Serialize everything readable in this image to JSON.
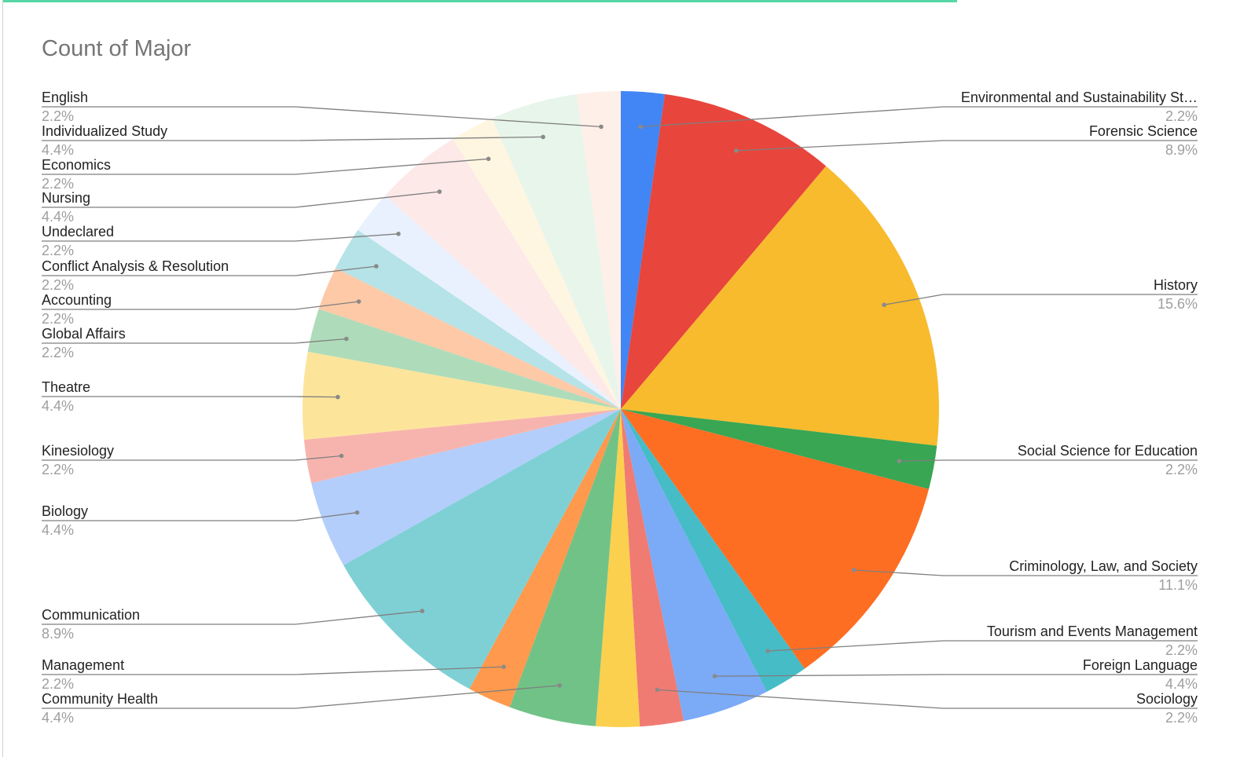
{
  "chart_data": {
    "type": "pie",
    "title": "Count of Major",
    "unit": "%",
    "slices": [
      {
        "label": "Environmental and Sustainability St…",
        "value": 2.2,
        "pct": "2.2%",
        "color": "#4285f4"
      },
      {
        "label": "Forensic Science",
        "value": 8.9,
        "pct": "8.9%",
        "color": "#e8453c"
      },
      {
        "label": "History",
        "value": 15.6,
        "pct": "15.6%",
        "color": "#f8bb2d"
      },
      {
        "label": "Social Science for Education",
        "value": 2.2,
        "pct": "2.2%",
        "color": "#38a653"
      },
      {
        "label": "Criminology, Law, and Society",
        "value": 11.1,
        "pct": "11.1%",
        "color": "#fd6e23"
      },
      {
        "label": "Tourism and Events Management",
        "value": 2.2,
        "pct": "2.2%",
        "color": "#46bcc6"
      },
      {
        "label": "Foreign Language",
        "value": 4.4,
        "pct": "4.4%",
        "color": "#7baaf7"
      },
      {
        "label": "Sociology",
        "value": 2.2,
        "pct": "2.2%",
        "color": "#f07b72"
      },
      {
        "label": "",
        "value": 2.2,
        "pct": "",
        "color": "#fcd04f"
      },
      {
        "label": "Community Health",
        "value": 4.4,
        "pct": "4.4%",
        "color": "#71c287"
      },
      {
        "label": "Management",
        "value": 2.2,
        "pct": "2.2%",
        "color": "#ff994d"
      },
      {
        "label": "Communication",
        "value": 8.9,
        "pct": "8.9%",
        "color": "#7fd0d5"
      },
      {
        "label": "Biology",
        "value": 4.4,
        "pct": "4.4%",
        "color": "#b3cefb"
      },
      {
        "label": "Kinesiology",
        "value": 2.2,
        "pct": "2.2%",
        "color": "#f7b4ae"
      },
      {
        "label": "Theatre",
        "value": 4.4,
        "pct": "4.4%",
        "color": "#fde49b"
      },
      {
        "label": "Global Affairs",
        "value": 2.2,
        "pct": "2.2%",
        "color": "#aedcba"
      },
      {
        "label": "Accounting",
        "value": 2.2,
        "pct": "2.2%",
        "color": "#fec9a7"
      },
      {
        "label": "Conflict Analysis & Resolution",
        "value": 2.2,
        "pct": "2.2%",
        "color": "#b5e3e7"
      },
      {
        "label": "Undeclared",
        "value": 2.2,
        "pct": "2.2%",
        "color": "#e9f1fe"
      },
      {
        "label": "Nursing",
        "value": 4.4,
        "pct": "4.4%",
        "color": "#fde9e8"
      },
      {
        "label": "Economics",
        "value": 2.2,
        "pct": "2.2%",
        "color": "#fff6e1"
      },
      {
        "label": "Individualized Study",
        "value": 4.4,
        "pct": "4.4%",
        "color": "#e8f5ea"
      },
      {
        "label": "English",
        "value": 2.2,
        "pct": "2.2%",
        "color": "#feefe8"
      }
    ]
  }
}
